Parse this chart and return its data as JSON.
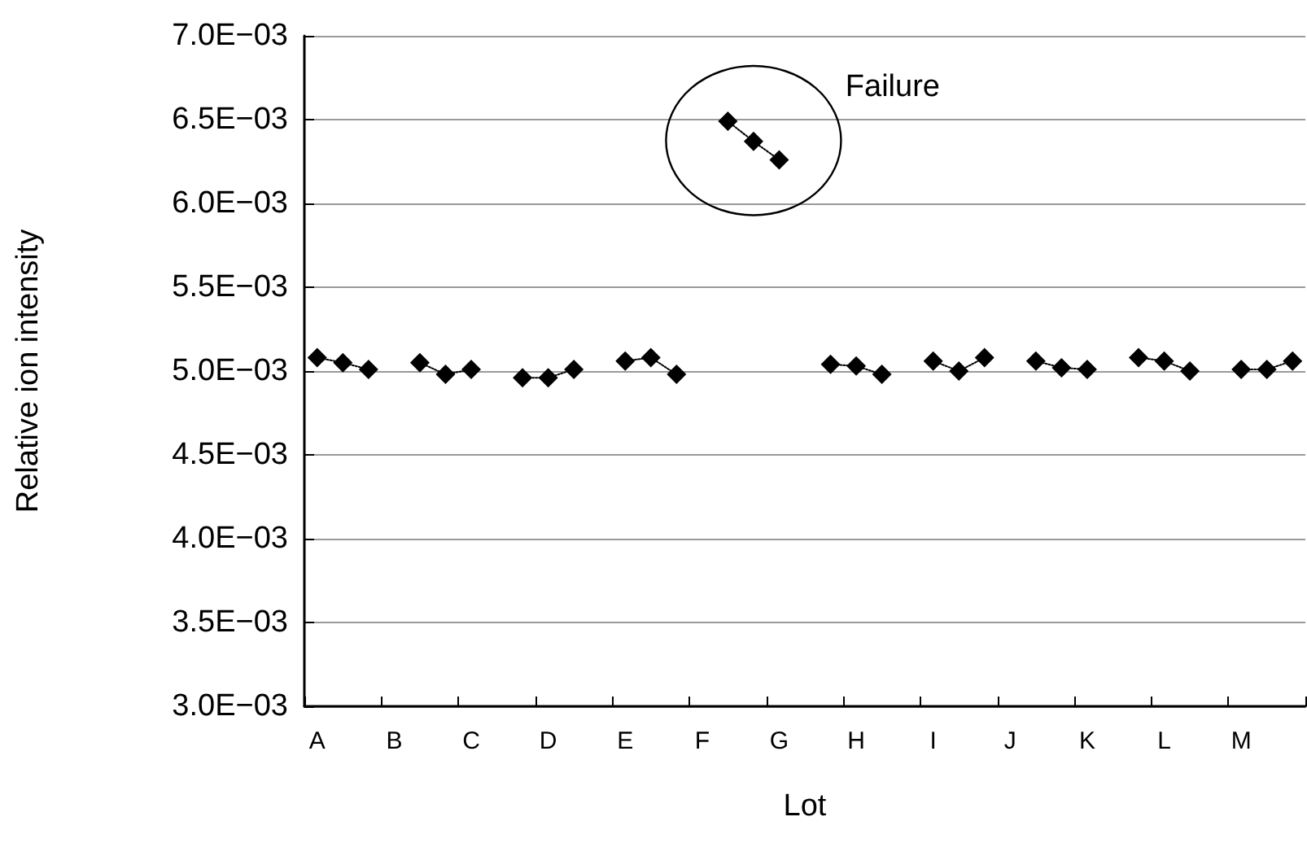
{
  "chart_data": {
    "type": "line",
    "xlabel": "Lot",
    "ylabel": "Relative ion intensity",
    "categories": [
      "A",
      null,
      null,
      "B",
      null,
      null,
      "C",
      null,
      null,
      "D",
      null,
      null,
      "E",
      null,
      null,
      "F",
      null,
      null,
      "G",
      null,
      null,
      "H",
      null,
      null,
      "I",
      null,
      null,
      "J",
      null,
      null,
      "K",
      null,
      null,
      "L",
      null,
      null,
      "M",
      null,
      null
    ],
    "series": [
      {
        "color": "#000000",
        "values": [
          0.00508,
          0.00505,
          0.00501,
          null,
          0.00505,
          0.00498,
          0.00501,
          null,
          0.00496,
          0.00496,
          0.00501,
          null,
          0.00506,
          0.00508,
          0.00498,
          null,
          0.00649,
          0.00637,
          0.00626,
          null,
          0.00504,
          0.00503,
          0.00498,
          null,
          0.00506,
          0.005,
          0.00508,
          null,
          0.00506,
          0.00502,
          0.00501,
          null,
          0.00508,
          0.00506,
          0.005,
          null,
          0.00501,
          0.00501,
          0.00506
        ]
      }
    ],
    "ylim": [
      0.003,
      0.007
    ],
    "yticks": [
      {
        "value": 0.003,
        "label": "3.0E−03"
      },
      {
        "value": 0.0035,
        "label": "3.5E−03"
      },
      {
        "value": 0.004,
        "label": "4.0E−03"
      },
      {
        "value": 0.0045,
        "label": "4.5E−03"
      },
      {
        "value": 0.005,
        "label": "5.0E−03"
      },
      {
        "value": 0.0055,
        "label": "5.5E−03"
      },
      {
        "value": 0.006,
        "label": "6.0E−03"
      },
      {
        "value": 0.0065,
        "label": "6.5E−03"
      },
      {
        "value": 0.007,
        "label": "7.0E−03"
      }
    ],
    "annotations": [
      "Failure"
    ],
    "grid": "y",
    "marker": "diamond",
    "line_style": "dotted"
  }
}
